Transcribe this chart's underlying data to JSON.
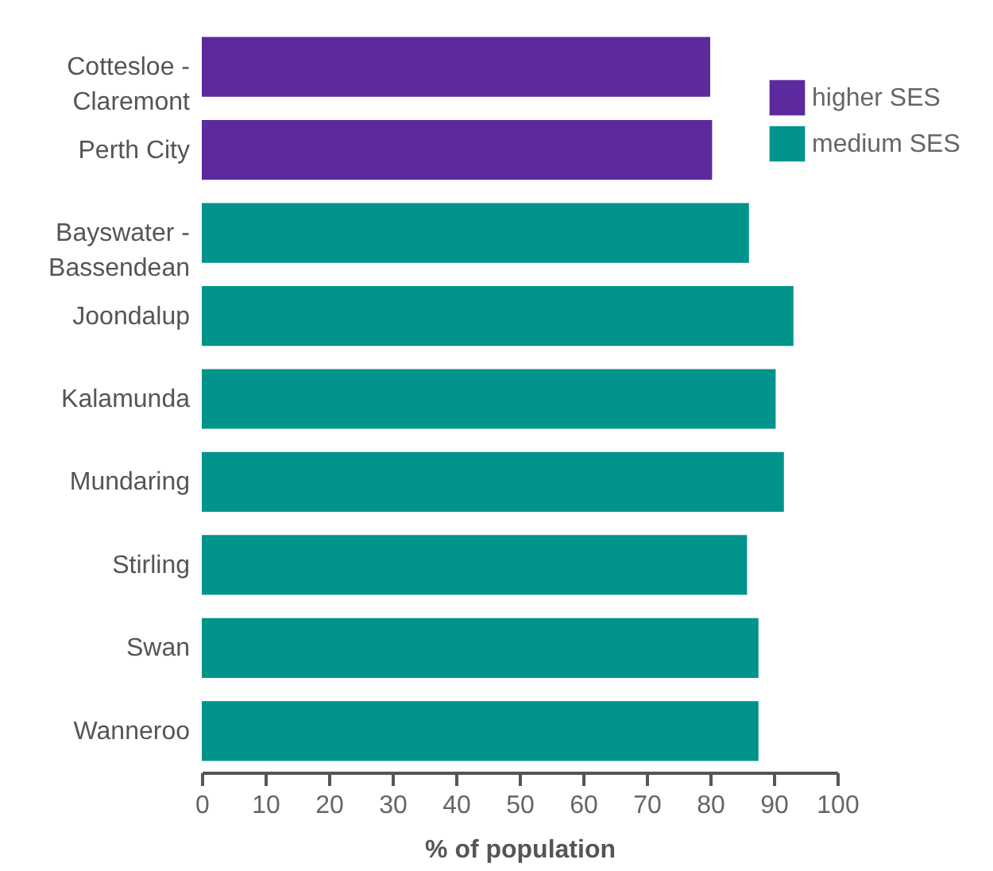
{
  "chart_data": {
    "type": "bar",
    "orientation": "horizontal",
    "categories": [
      "Cottesloe - Claremont",
      "Perth City",
      "Bayswater - Bassendean",
      "Joondalup",
      "Kalamunda",
      "Mundaring",
      "Stirling",
      "Swan",
      "Wanneroo"
    ],
    "series": [
      {
        "name": "higher SES",
        "color": "#5c2a9d",
        "values": [
          80,
          80.3,
          null,
          null,
          null,
          null,
          null,
          null,
          null
        ]
      },
      {
        "name": "medium SES",
        "color": "#00948c",
        "values": [
          null,
          null,
          86.1,
          93.1,
          90.3,
          91.6,
          85.8,
          87.6,
          87.6
        ]
      }
    ],
    "xlabel": "% of population",
    "xlim": [
      0,
      100
    ],
    "xticks": [
      0,
      10,
      20,
      30,
      40,
      50,
      60,
      70,
      80,
      90,
      100
    ],
    "grid": false,
    "legend": "top right"
  }
}
